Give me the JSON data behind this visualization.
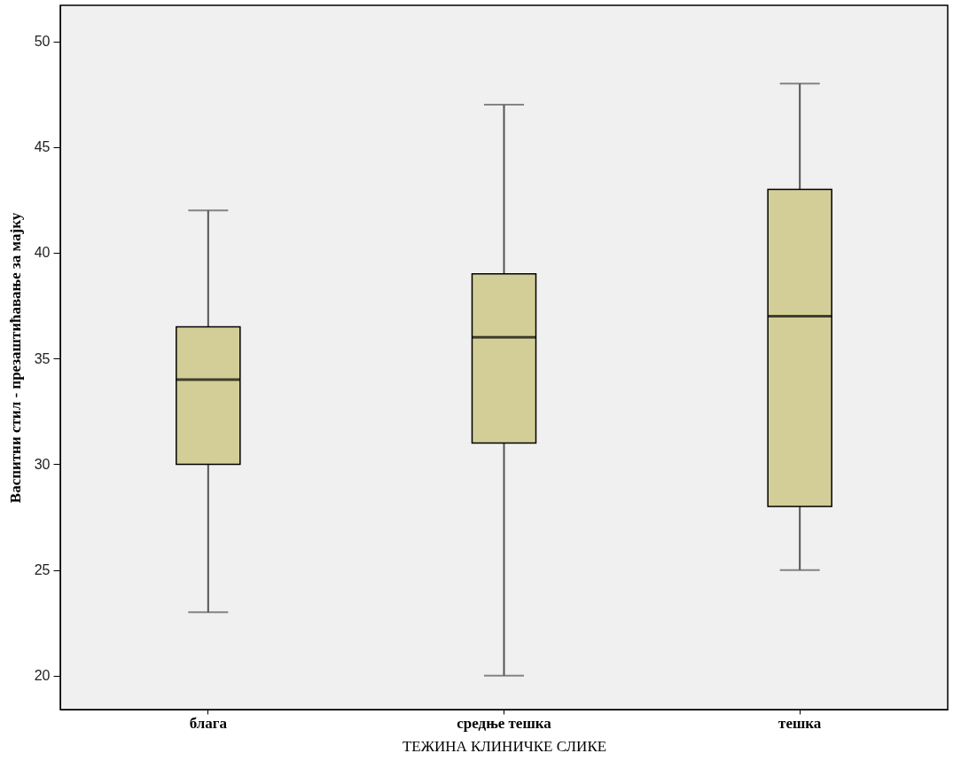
{
  "chart_data": {
    "type": "box",
    "xlabel": "ТЕЖИНА КЛИНИЧКЕ СЛИКЕ",
    "ylabel": "Васпитни стил - презаштићавање за мајку",
    "categories": [
      "блага",
      "средње тешка",
      "тешка"
    ],
    "series": [
      {
        "color": "#d3ce97",
        "boxes": [
          {
            "low": 23,
            "q1": 30,
            "median": 34,
            "q3": 36.5,
            "high": 42
          },
          {
            "low": 20,
            "q1": 31,
            "median": 36,
            "q3": 39,
            "high": 47
          },
          {
            "low": 25,
            "q1": 28,
            "median": 37,
            "q3": 43,
            "high": 48
          }
        ]
      }
    ],
    "ylim": [
      18.4,
      51.7
    ],
    "yticks": [
      20,
      25,
      30,
      35,
      40,
      45,
      50
    ],
    "grid": false
  }
}
